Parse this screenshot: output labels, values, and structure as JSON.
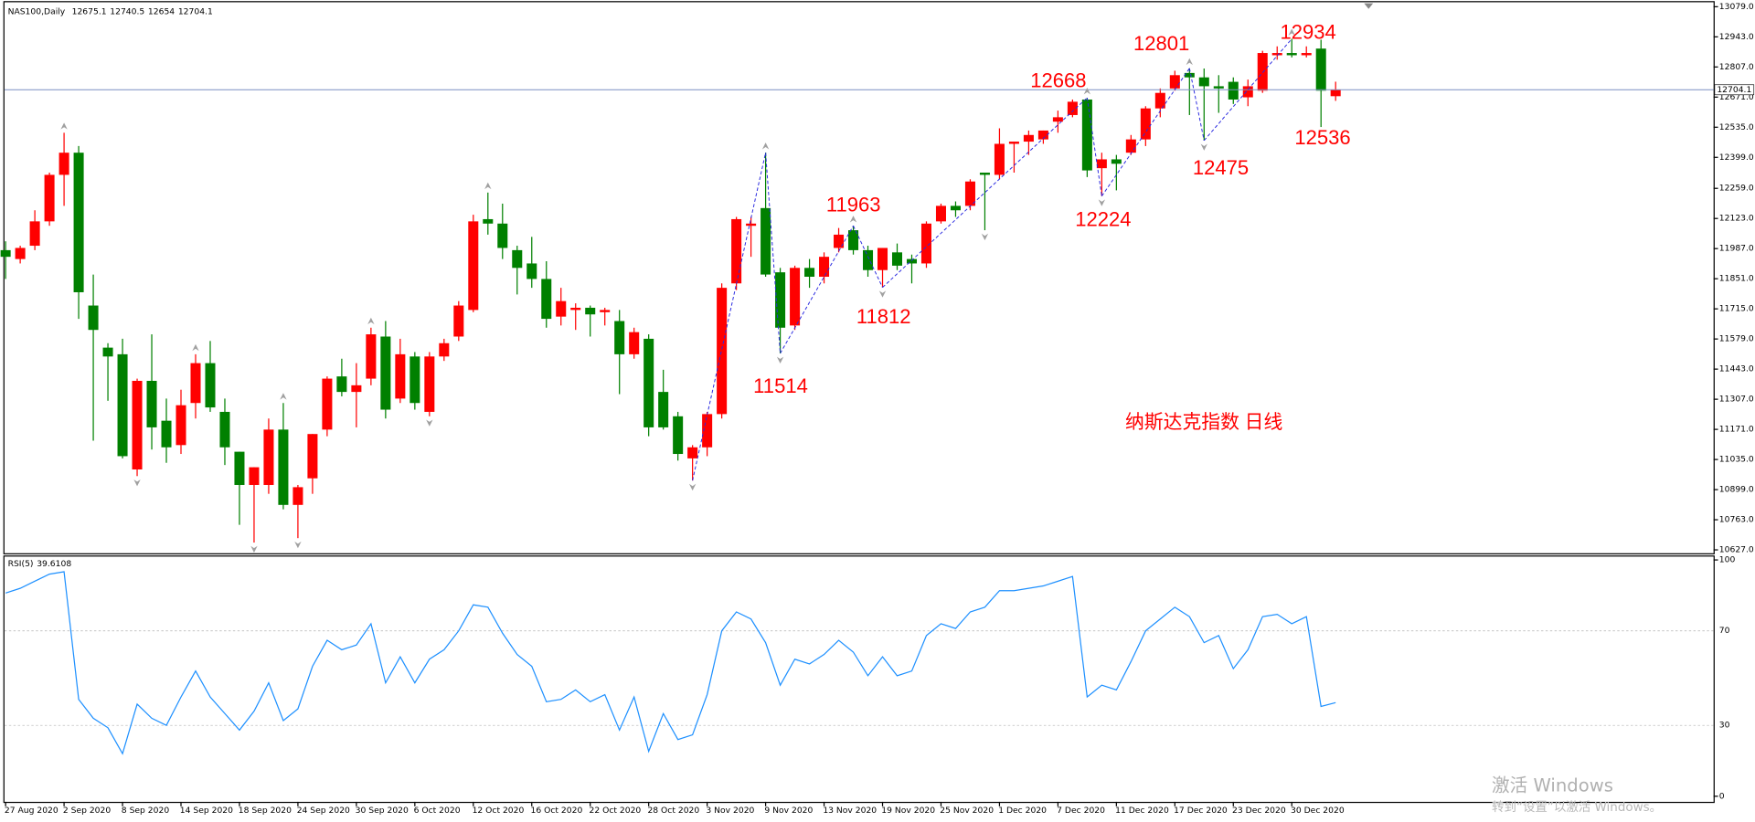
{
  "chart_data": [
    {
      "type": "candlestick",
      "title": "NAS100,Daily",
      "categories": [
        "27 Aug 2020",
        null,
        null,
        null,
        "2 Sep 2020",
        null,
        null,
        null,
        "8 Sep 2020",
        null,
        null,
        null,
        "14 Sep 2020",
        null,
        null,
        null,
        "18 Sep 2020",
        null,
        null,
        null,
        "24 Sep 2020",
        null,
        null,
        null,
        "30 Sep 2020",
        null,
        null,
        null,
        "6 Oct 2020",
        null,
        null,
        null,
        "12 Oct 2020",
        null,
        null,
        null,
        "16 Oct 2020",
        null,
        null,
        null,
        "22 Oct 2020",
        null,
        null,
        null,
        "28 Oct 2020",
        null,
        null,
        null,
        "3 Nov 2020",
        null,
        null,
        null,
        "9 Nov 2020",
        null,
        null,
        null,
        "13 Nov 2020",
        null,
        null,
        null,
        "19 Nov 2020",
        null,
        null,
        null,
        "25 Nov 2020",
        null,
        null,
        null,
        "1 Dec 2020",
        null,
        null,
        null,
        "7 Dec 2020",
        null,
        null,
        null,
        "11 Dec 2020",
        null,
        null,
        null,
        "17 Dec 2020",
        null,
        null,
        null,
        "23 Dec 2020",
        null,
        null,
        null,
        "30 Dec 2020",
        null,
        null,
        null
      ],
      "open": [
        11980,
        11940,
        12000,
        12110,
        12320,
        12420,
        11730,
        11540,
        11510,
        10990,
        11390,
        11210,
        11100,
        11290,
        11470,
        11250,
        11070,
        10920,
        10920,
        11170,
        10830,
        10950,
        11170,
        11410,
        11340,
        11400,
        11590,
        11310,
        11500,
        11250,
        11500,
        11590,
        11710,
        12120,
        12100,
        11980,
        11920,
        11850,
        11680,
        11710,
        11720,
        11700,
        11660,
        11510,
        11580,
        11340,
        11230,
        11040,
        11090,
        11240,
        11830,
        12090,
        12170,
        11880,
        11640,
        11900,
        11860,
        11990,
        12070,
        11980,
        11890,
        11970,
        11940,
        11920,
        12110,
        12180,
        12180,
        12330,
        12320,
        12460,
        12470,
        12480,
        12560,
        12590,
        12660,
        12350,
        12390,
        12420,
        12480,
        12620,
        12710,
        12780,
        12760,
        12720,
        12740,
        12670,
        12700,
        12860,
        12870,
        12860,
        12890,
        12675.1
      ],
      "high": [
        12020,
        12000,
        12160,
        12330,
        12510,
        12450,
        11870,
        11560,
        11580,
        11400,
        11600,
        11310,
        11350,
        11510,
        11570,
        11310,
        11070,
        11000,
        11220,
        11290,
        10920,
        11150,
        11410,
        11490,
        11470,
        11630,
        11660,
        11580,
        11520,
        11520,
        11580,
        11750,
        12140,
        12240,
        12190,
        12000,
        12040,
        11930,
        11810,
        11740,
        11730,
        11720,
        11710,
        11630,
        11600,
        11440,
        11250,
        11100,
        11250,
        11830,
        12130,
        12130,
        12420,
        11900,
        11910,
        11940,
        11970,
        12080,
        12090,
        12000,
        11990,
        12010,
        11960,
        12110,
        12190,
        12200,
        12300,
        12330,
        12530,
        12470,
        12520,
        12520,
        12610,
        12660,
        12668,
        12420,
        12410,
        12500,
        12630,
        12710,
        12790,
        12801,
        12800,
        12770,
        12760,
        12750,
        12880,
        12900,
        12934,
        12900,
        12930,
        12740.5
      ],
      "low": [
        11850,
        11920,
        11980,
        12090,
        12180,
        11670,
        11120,
        11300,
        11040,
        10960,
        11080,
        11020,
        11060,
        11220,
        11250,
        11010,
        10740,
        10660,
        10880,
        10810,
        10680,
        10880,
        11140,
        11320,
        11180,
        11370,
        11220,
        11290,
        11260,
        11230,
        11480,
        11570,
        11700,
        12050,
        11940,
        11780,
        11810,
        11630,
        11640,
        11620,
        11590,
        11640,
        11330,
        11490,
        11140,
        11170,
        11030,
        10940,
        11050,
        11220,
        11800,
        11950,
        11860,
        11514,
        11620,
        11810,
        11830,
        11970,
        11960,
        11860,
        11812,
        11890,
        11830,
        11900,
        12100,
        12130,
        12160,
        12070,
        12300,
        12330,
        12410,
        12460,
        12510,
        12580,
        12310,
        12224,
        12250,
        12410,
        12450,
        12580,
        12700,
        12590,
        12475,
        12600,
        12640,
        12630,
        12690,
        12840,
        12850,
        12850,
        12536,
        12654.0
      ],
      "close": [
        11950,
        11990,
        12110,
        12320,
        12420,
        11790,
        11620,
        11500,
        11050,
        11390,
        11180,
        11090,
        11280,
        11470,
        11270,
        11090,
        10920,
        11000,
        11170,
        10830,
        10910,
        11150,
        11400,
        11340,
        11370,
        11600,
        11260,
        11510,
        11290,
        11500,
        11560,
        11730,
        12110,
        12100,
        11990,
        11900,
        11850,
        11670,
        11750,
        11720,
        11690,
        11710,
        11510,
        11610,
        11180,
        11180,
        11060,
        11090,
        11240,
        11810,
        12120,
        12100,
        11870,
        11630,
        11900,
        11860,
        11950,
        12050,
        11980,
        11890,
        11990,
        11910,
        11920,
        12100,
        12180,
        12160,
        12290,
        12320,
        12460,
        12470,
        12500,
        12520,
        12580,
        12650,
        12340,
        12390,
        12370,
        12480,
        12620,
        12690,
        12770,
        12760,
        12720,
        12710,
        12660,
        12720,
        12870,
        12870,
        12860,
        12870,
        12700,
        12704.1
      ],
      "up_color": "#ff0000",
      "down_color": "#008000",
      "ylim": [
        10627,
        13079
      ],
      "yticks": [
        {
          "value": 13079,
          "label": "13079.0"
        },
        {
          "value": 12943,
          "label": "12943.0"
        },
        {
          "value": 12807,
          "label": "12807.0"
        },
        {
          "value": 12671,
          "label": "12671.0"
        },
        {
          "value": 12535,
          "label": "12535.0"
        },
        {
          "value": 12399,
          "label": "12399.0"
        },
        {
          "value": 12259,
          "label": "12259.0"
        },
        {
          "value": 12123,
          "label": "12123.0"
        },
        {
          "value": 11987,
          "label": "11987.0"
        },
        {
          "value": 11851,
          "label": "11851.0"
        },
        {
          "value": 11715,
          "label": "11715.0"
        },
        {
          "value": 11579,
          "label": "11579.0"
        },
        {
          "value": 11443,
          "label": "11443.0"
        },
        {
          "value": 11307,
          "label": "11307.0"
        },
        {
          "value": 11171,
          "label": "11171.0"
        },
        {
          "value": 11035,
          "label": "11035.0"
        },
        {
          "value": 10899,
          "label": "10899.0"
        },
        {
          "value": 10763,
          "label": "10763.0"
        },
        {
          "value": 10627,
          "label": "10627.0"
        }
      ],
      "annotations": [
        "12668",
        "12801",
        "12934",
        "12536",
        "12475",
        "12224",
        "11963",
        "11812",
        "11514",
        "纳斯达克指数 日线"
      ]
    },
    {
      "type": "line",
      "title": "RSI(5)",
      "color": "#1e90ff",
      "values": [
        86,
        88,
        91,
        94,
        95,
        41,
        33,
        29,
        18,
        39,
        33,
        30,
        42,
        53,
        42,
        35,
        28,
        36,
        48,
        32,
        37,
        55,
        66,
        62,
        64,
        73,
        48,
        59,
        48,
        58,
        62,
        70,
        81,
        80,
        69,
        60,
        55,
        40,
        41,
        45,
        40,
        43,
        28,
        42,
        19,
        35,
        24,
        26,
        43,
        70,
        78,
        75,
        65,
        47,
        58,
        56,
        60,
        66,
        61,
        51,
        59,
        51,
        53,
        68,
        73,
        71,
        78,
        80,
        87,
        87,
        88,
        89,
        91,
        93,
        42,
        47,
        45,
        57,
        70,
        75,
        80,
        76,
        65,
        68,
        54,
        62,
        76,
        77,
        73,
        76,
        38,
        39.6108
      ],
      "ylim": [
        0,
        100
      ],
      "yticks": [
        100,
        70,
        30,
        0
      ]
    }
  ],
  "watermark": {
    "title": "激活 Windows",
    "text": "转到“设置”以激活 Windows。"
  }
}
